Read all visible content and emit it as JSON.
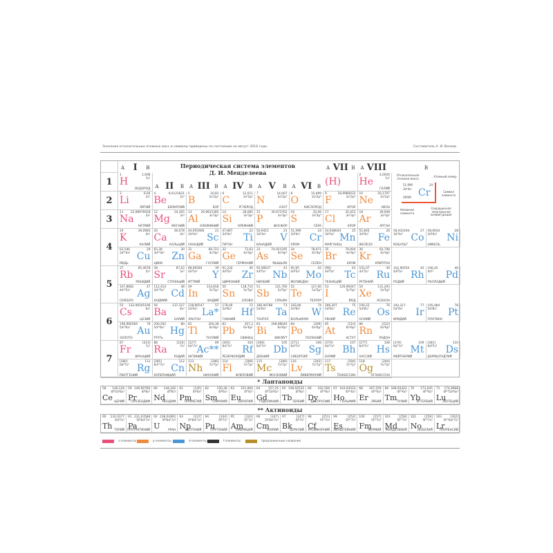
{
  "header": {
    "note": "Значения относительных атомных масс и символы приведены по состоянию на август 2016 года.",
    "author": "Составитель А. И. Волков"
  },
  "title": {
    "line1": "Периодическая система элементов",
    "line2": "Д. И. Менделеева"
  },
  "groups": [
    "I",
    "II",
    "III",
    "IV",
    "V",
    "VI",
    "VII",
    "VIII"
  ],
  "sub_a": "A",
  "sub_b": "B",
  "periods": [
    "1",
    "2",
    "3",
    "4",
    "5",
    "6",
    "7"
  ],
  "colors": {
    "s": "#e8507a",
    "p": "#ef8a3c",
    "d": "#4a95d3",
    "f": "#333333",
    "new": "#b58d2a"
  },
  "key": {
    "mass_label": "Относительная атомная масса",
    "number_label": "Атомный номер",
    "symbol_label": "Символ элемента",
    "name_label": "Название элемента",
    "config_label": "Сокращенная электронная конфигурация",
    "mass": "51,996",
    "number": "24",
    "config": "3d⁵4s¹",
    "name": "ХРОМ",
    "symbol": "Cr"
  },
  "table": {
    "rows": [
      [
        [
          1,
          "H",
          "1,008",
          "1s¹",
          "ВОДОРОД",
          "s"
        ],
        null,
        null,
        null,
        null,
        null,
        [
          null,
          "(H)",
          null,
          null,
          null,
          "s"
        ],
        [
          2,
          "He",
          "4,0026",
          "1s²",
          "ГЕЛИЙ",
          "s"
        ],
        null,
        null
      ],
      [
        [
          3,
          "Li",
          "6,94",
          "2s¹",
          "ЛИТИЙ",
          "s"
        ],
        [
          4,
          "Be",
          "9,0121831",
          "2s²",
          "БЕРИЛЛИЙ",
          "s"
        ],
        [
          5,
          "B",
          "10,81",
          "2s²2p¹",
          "БОР",
          "p"
        ],
        [
          6,
          "C",
          "12,011",
          "2s²2p²",
          "УГЛЕРОД",
          "p"
        ],
        [
          7,
          "N",
          "14,007",
          "2s²2p³",
          "АЗОТ",
          "p"
        ],
        [
          8,
          "O",
          "15,999",
          "2s²2p⁴",
          "КИСЛОРОД",
          "p"
        ],
        [
          9,
          "F",
          "18,9984032",
          "2s²2p⁵",
          "ФТОР",
          "p"
        ],
        [
          10,
          "Ne",
          "20,1797",
          "2s²2p⁶",
          "НЕОН",
          "p"
        ],
        null,
        null
      ],
      [
        [
          11,
          "Na",
          "22,98976928",
          "3s¹",
          "НАТРИЙ",
          "s"
        ],
        [
          12,
          "Mg",
          "24,305",
          "3s²",
          "МАГНИЙ",
          "s"
        ],
        [
          13,
          "Al",
          "26,9815385",
          "3s²3p¹",
          "АЛЮМИНИЙ",
          "p"
        ],
        [
          14,
          "Si",
          "28,085",
          "3s²3p²",
          "КРЕМНИЙ",
          "p"
        ],
        [
          15,
          "P",
          "30,973762",
          "3s²3p³",
          "ФОСФОР",
          "p"
        ],
        [
          16,
          "S",
          "32,06",
          "3s²3p⁴",
          "СЕРА",
          "p"
        ],
        [
          17,
          "Cl",
          "35,452",
          "3s²3p⁵",
          "ХЛОР",
          "p"
        ],
        [
          18,
          "Ar",
          "39,948",
          "3s²3p⁶",
          "АРГОН",
          "p"
        ],
        null,
        null
      ],
      [
        [
          19,
          "K",
          "39,0983",
          "4s¹",
          "КАЛИЙ",
          "s"
        ],
        [
          20,
          "Ca",
          "40,078",
          "4s²",
          "КАЛЬЦИЙ",
          "s"
        ],
        [
          21,
          "Sc",
          "44,955908",
          "3d¹4s²",
          "СКАНДИЙ",
          "d"
        ],
        [
          22,
          "Ti",
          "47,867",
          "3d²4s²",
          "ТИТАН",
          "d"
        ],
        [
          23,
          "V",
          "50,9415",
          "3d³4s²",
          "ВАНАДИЙ",
          "d"
        ],
        [
          24,
          "Cr",
          "51,996",
          "3d⁵4s¹",
          "ХРОМ",
          "d"
        ],
        [
          25,
          "Mn",
          "54,938044",
          "3d⁵4s²",
          "МАРГАНЕЦ",
          "d"
        ],
        [
          26,
          "Fe",
          "55,845",
          "3d⁶4s²",
          "ЖЕЛЕЗО",
          "d"
        ],
        [
          27,
          "Co",
          "58,933194",
          "3d⁷4s²",
          "КОБАЛЬТ",
          "d"
        ],
        [
          28,
          "Ni",
          "58,6934",
          "3d⁸4s²",
          "НИКЕЛЬ",
          "d"
        ]
      ],
      [
        [
          29,
          "Cu",
          "63,546",
          "3d¹⁰4s¹",
          "МЕДЬ",
          "d"
        ],
        [
          30,
          "Zn",
          "65,38",
          "3d¹⁰4s²",
          "ЦИНК",
          "d"
        ],
        [
          31,
          "Ga",
          "69,723",
          "4s²4p¹",
          "ГАЛЛИЙ",
          "p"
        ],
        [
          32,
          "Ge",
          "72,63",
          "4s²4p²",
          "ГЕРМАНИЙ",
          "p"
        ],
        [
          33,
          "As",
          "74,921595",
          "4s²4p³",
          "МЫШЬЯК",
          "p"
        ],
        [
          34,
          "Se",
          "78,971",
          "4s²4p⁴",
          "СЕЛЕН",
          "p"
        ],
        [
          35,
          "Br",
          "79,904",
          "4s²4p⁵",
          "БРОМ",
          "p"
        ],
        [
          36,
          "Kr",
          "83,798",
          "4s²4p⁶",
          "КРИПТОН",
          "p"
        ],
        null,
        null
      ],
      [
        [
          37,
          "Rb",
          "85,4678",
          "5s¹",
          "РУБИДИЙ",
          "s"
        ],
        [
          38,
          "Sr",
          "87,62",
          "5s²",
          "СТРОНЦИЙ",
          "s"
        ],
        [
          39,
          "Y",
          "88,90584",
          "4d¹5s²",
          "ИТТРИЙ",
          "d"
        ],
        [
          40,
          "Zr",
          "91,224",
          "4d²5s²",
          "ЦИРКОНИЙ",
          "d"
        ],
        [
          41,
          "Nb",
          "92,90637",
          "4d⁴5s¹",
          "НИОБИЙ",
          "d"
        ],
        [
          42,
          "Mo",
          "95,95",
          "4d⁵5s¹",
          "МОЛИБДЕН",
          "d"
        ],
        [
          43,
          "Tc",
          "[98]",
          "4d⁵5s²",
          "ТЕХНЕЦИЙ",
          "d"
        ],
        [
          44,
          "Ru",
          "101,07",
          "4d⁷5s¹",
          "РУТЕНИЙ",
          "d"
        ],
        [
          45,
          "Rh",
          "102,90550",
          "4d⁸5s¹",
          "РОДИЙ",
          "d"
        ],
        [
          46,
          "Pd",
          "106,42",
          "4d¹⁰",
          "ПАЛЛАДИЙ",
          "d"
        ]
      ],
      [
        [
          47,
          "Ag",
          "107,8682",
          "4d¹⁰5s¹",
          "СЕРЕБРО",
          "d"
        ],
        [
          48,
          "Cd",
          "112,414",
          "4d¹⁰5s²",
          "КАДМИЙ",
          "d"
        ],
        [
          49,
          "In",
          "114,818",
          "5s²5p¹",
          "ИНДИЙ",
          "p"
        ],
        [
          50,
          "Sn",
          "118,710",
          "5s²5p²",
          "ОЛОВО",
          "p"
        ],
        [
          51,
          "Sb",
          "121,760",
          "5s²5p³",
          "СУРЬМА",
          "p"
        ],
        [
          52,
          "Te",
          "127,60",
          "5s²5p⁴",
          "ТЕЛЛУР",
          "p"
        ],
        [
          53,
          "I",
          "126,90447",
          "5s²5p⁵",
          "ЙОД",
          "p"
        ],
        [
          54,
          "Xe",
          "131,293",
          "5s²5p⁶",
          "КСЕНОН",
          "p"
        ],
        null,
        null
      ],
      [
        [
          55,
          "Cs",
          "132,90545196",
          "6s¹",
          "ЦЕЗИЙ",
          "s"
        ],
        [
          56,
          "Ba",
          "137,327",
          "6s²",
          "БАРИЙ",
          "s"
        ],
        [
          57,
          "La*",
          "138,90547",
          "5d¹6s²",
          "ЛАНТАН",
          "d"
        ],
        [
          72,
          "Hf",
          "178,49",
          "5d²6s²",
          "ГАФНИЙ",
          "d"
        ],
        [
          73,
          "Ta",
          "180,94788",
          "5d³6s²",
          "ТАНТАЛ",
          "d"
        ],
        [
          74,
          "W",
          "183,84",
          "5d⁴6s²",
          "ВОЛЬФРАМ",
          "d"
        ],
        [
          75,
          "Re",
          "186,207",
          "5d⁵6s²",
          "РЕНИЙ",
          "d"
        ],
        [
          76,
          "Os",
          "190,23",
          "5d⁶6s²",
          "ОСМИЙ",
          "d"
        ],
        [
          77,
          "Ir",
          "192,217",
          "5d⁷6s²",
          "ИРИДИЙ",
          "d"
        ],
        [
          78,
          "Pt",
          "195,084",
          "5d⁹6s¹",
          "ПЛАТИНА",
          "d"
        ]
      ],
      [
        [
          79,
          "Au",
          "196,966569",
          "5d¹⁰6s¹",
          "ЗОЛОТО",
          "d"
        ],
        [
          80,
          "Hg",
          "200,592",
          "5d¹⁰6s²",
          "РТУТЬ",
          "d"
        ],
        [
          81,
          "Tl",
          "204,38",
          "6s²6p¹",
          "ТАЛЛИЙ",
          "p"
        ],
        [
          82,
          "Pb",
          "207,2",
          "6s²6p²",
          "СВИНЕЦ",
          "p"
        ],
        [
          83,
          "Bi",
          "208,98040",
          "6s²6p³",
          "ВИСМУТ",
          "p"
        ],
        [
          84,
          "Po",
          "[209]",
          "6s²6p⁴",
          "ПОЛОНИЙ",
          "p"
        ],
        [
          85,
          "At",
          "[210]",
          "6s²6p⁵",
          "АСТАТ",
          "p"
        ],
        [
          86,
          "Rn",
          "[222]",
          "6s²6p⁶",
          "РАДОН",
          "p"
        ],
        null,
        null
      ],
      [
        [
          87,
          "Fr",
          "[223]",
          "7s¹",
          "ФРАНЦИЙ",
          "s"
        ],
        [
          88,
          "Ra",
          "[226]",
          "7s²",
          "РАДИЙ",
          "s"
        ],
        [
          89,
          "Ac**",
          "[227]",
          "6d¹7s²",
          "АКТИНИЙ",
          "d"
        ],
        [
          104,
          "Rf",
          "[265]",
          "6d²7s²",
          "РЕЗЕРФОРДИЙ",
          "d"
        ],
        [
          105,
          "Db",
          "[268]",
          "6d³7s²",
          "ДУБНИЙ",
          "d"
        ],
        [
          106,
          "Sg",
          "[271]",
          "6d⁴7s²",
          "СИБОРГИЙ",
          "d"
        ],
        [
          107,
          "Bh",
          "[270]",
          "6d⁵7s²",
          "БОРИЙ",
          "d"
        ],
        [
          108,
          "Hs",
          "[277]",
          "6d⁶7s²",
          "ХАССИЙ",
          "d"
        ],
        [
          109,
          "Mt",
          "[276]",
          "6d⁷7s²",
          "МЕЙТНЕРИЙ",
          "d"
        ],
        [
          110,
          "Ds",
          "[281]",
          "6d⁸7s²",
          "ДАРМШТАДТИЙ",
          "d"
        ]
      ],
      [
        [
          111,
          "Rg",
          "[280]",
          "6d⁹7s²",
          "РЕНТГЕНИЙ",
          "d"
        ],
        [
          112,
          "Cn",
          "[285]",
          "6d¹⁰7s²",
          "КОПЕРНИЦИЙ",
          "d"
        ],
        [
          113,
          "Nh",
          "[286]",
          "7s²7p¹",
          "НИХОНИЙ",
          "new"
        ],
        [
          114,
          "Fl",
          "[289]",
          "7s²7p²",
          "ФЛЕРОВИЙ",
          "p"
        ],
        [
          115,
          "Mc",
          "[289]",
          "7s²7p³",
          "МОСКОВИЙ",
          "new"
        ],
        [
          116,
          "Lv",
          "[293]",
          "7s²7p⁴",
          "ЛИВЕРМОРИЙ",
          "p"
        ],
        [
          117,
          "Ts",
          "[294]",
          "7s²7p⁵",
          "ТЕННЕССИН",
          "new"
        ],
        [
          118,
          "Og",
          "[294]",
          "7s²7p⁶",
          "ОГАНЕССОН",
          "new"
        ],
        null,
        null
      ]
    ]
  },
  "lanthanides": {
    "title": "* Лантаноиды",
    "items": [
      [
        58,
        "Ce",
        "140,116",
        "4f¹5d¹6s²",
        "ЦЕРИЙ",
        "f"
      ],
      [
        59,
        "Pr",
        "140,90766",
        "4f³6s²",
        "ПРАЗЕОДИМ",
        "f"
      ],
      [
        60,
        "Nd",
        "144,242",
        "4f⁴6s²",
        "НЕОДИМ",
        "f"
      ],
      [
        61,
        "Pm",
        "[145]",
        "4f⁵6s²",
        "ПРОМЕТИЙ",
        "f"
      ],
      [
        62,
        "Sm",
        "150,36",
        "4f⁶6s²",
        "САМАРИЙ",
        "f"
      ],
      [
        63,
        "Eu",
        "151,964",
        "4f⁷6s²",
        "ЕВРОПИЙ",
        "f"
      ],
      [
        64,
        "Gd",
        "157,25",
        "4f⁷5d¹6s²",
        "ГАДОЛИНИЙ",
        "f"
      ],
      [
        65,
        "Tb",
        "158,92535",
        "4f⁹6s²",
        "ТЕРБИЙ",
        "f"
      ],
      [
        66,
        "Dy",
        "162,500",
        "4f¹⁰6s²",
        "ДИСПРОЗИЙ",
        "f"
      ],
      [
        67,
        "Ho",
        "164,93033",
        "4f¹¹6s²",
        "ГОЛЬМИЙ",
        "f"
      ],
      [
        68,
        "Er",
        "167,259",
        "4f¹²6s²",
        "ЭРБИЙ",
        "f"
      ],
      [
        69,
        "Tm",
        "168,93422",
        "4f¹³6s²",
        "ТУЛИЙ",
        "f"
      ],
      [
        70,
        "Yb",
        "173,045",
        "4f¹⁴6s²",
        "ИТТЕРБИЙ",
        "f"
      ],
      [
        71,
        "Lu",
        "174,9668",
        "4f¹⁴5d¹6s²",
        "ЛЮТЕЦИЙ",
        "f"
      ]
    ]
  },
  "actinides": {
    "title": "** Актиноиды",
    "items": [
      [
        90,
        "Th",
        "232,0377",
        "6d²7s²",
        "ТОРИЙ",
        "f"
      ],
      [
        91,
        "Pa",
        "231,03588",
        "5f²6d¹7s²",
        "ПРОТАКТИНИЙ",
        "f"
      ],
      [
        92,
        "U",
        "238,02891",
        "5f³6d¹7s²",
        "УРАН",
        "f"
      ],
      [
        93,
        "Np",
        "[237]",
        "5f⁴6d¹7s²",
        "НЕПТУНИЙ",
        "f"
      ],
      [
        94,
        "Pu",
        "[244]",
        "5f⁶7s²",
        "ПЛУТОНИЙ",
        "f"
      ],
      [
        95,
        "Am",
        "[243]",
        "5f⁷7s²",
        "АМЕРИЦИЙ",
        "f"
      ],
      [
        96,
        "Cm",
        "[247]",
        "5f⁷6d¹7s²",
        "КЮРИЙ",
        "f"
      ],
      [
        97,
        "Bk",
        "[247]",
        "5f⁹7s²",
        "БЕРКЛИЙ",
        "f"
      ],
      [
        98,
        "Cf",
        "[251]",
        "5f¹⁰7s²",
        "КАЛИФОРНИЙ",
        "f"
      ],
      [
        99,
        "Es",
        "[252]",
        "5f¹¹7s²",
        "ЭЙНШТЕЙНИЙ",
        "f"
      ],
      [
        100,
        "Fm",
        "[257]",
        "5f¹²7s²",
        "ФЕРМИЙ",
        "f"
      ],
      [
        101,
        "Md",
        "[258]",
        "5f¹³7s²",
        "МЕНДЕЛЕВИЙ",
        "f"
      ],
      [
        102,
        "No",
        "[259]",
        "5f¹⁴7s²",
        "НОБЕЛИЙ",
        "f"
      ],
      [
        103,
        "Lr",
        "[262]",
        "5f¹⁴6d¹7s²",
        "ЛОУРЕНСИЙ",
        "f"
      ]
    ]
  },
  "legend": [
    {
      "label": "s-элементы",
      "block": "s"
    },
    {
      "label": "p-элементы",
      "block": "p"
    },
    {
      "label": "d-элементы",
      "block": "d"
    },
    {
      "label": "f-элементы",
      "block": "f"
    },
    {
      "label": "предложенные названия",
      "block": "new"
    }
  ]
}
